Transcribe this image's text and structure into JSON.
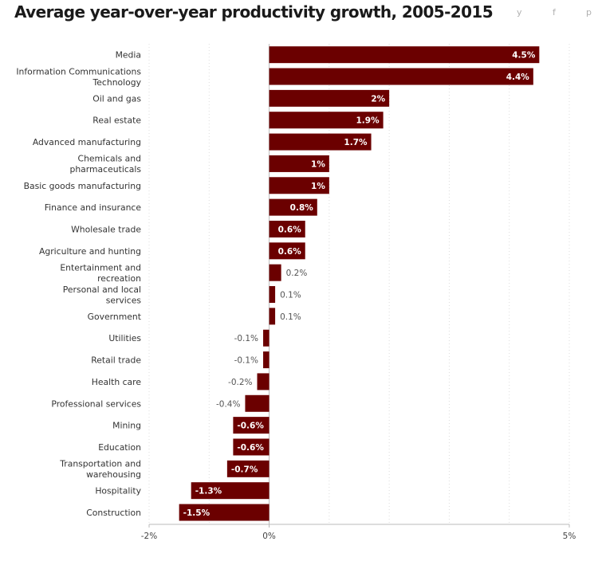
{
  "header": {
    "title": "Average year-over-year productivity growth, 2005-2015",
    "share": [
      {
        "icon": "twitter-icon",
        "glyph": "y"
      },
      {
        "icon": "facebook-icon",
        "glyph": "f"
      },
      {
        "icon": "pinterest-icon",
        "glyph": "p"
      }
    ]
  },
  "colors": {
    "bar": "#6b0000",
    "grid": "#dcdcdc",
    "axis": "#bbbbbb"
  },
  "chart_data": {
    "type": "bar",
    "orientation": "horizontal",
    "title": "Average year-over-year productivity growth, 2005-2015",
    "xlabel": "",
    "ylabel": "",
    "xlim": [
      -2,
      5
    ],
    "x_ticks": [
      -2,
      0,
      5
    ],
    "x_tick_labels": [
      "-2%",
      "0%",
      "5%"
    ],
    "grid": true,
    "categories": [
      [
        "Media"
      ],
      [
        "Information Communications",
        "Technology"
      ],
      [
        "Oil and gas"
      ],
      [
        "Real estate"
      ],
      [
        "Advanced manufacturing"
      ],
      [
        "Chemicals and",
        "pharmaceuticals"
      ],
      [
        "Basic goods manufacturing"
      ],
      [
        "Finance and insurance"
      ],
      [
        "Wholesale trade"
      ],
      [
        "Agriculture and hunting"
      ],
      [
        "Entertainment and",
        "recreation"
      ],
      [
        "Personal and local",
        "services"
      ],
      [
        "Government"
      ],
      [
        "Utilities"
      ],
      [
        "Retail trade"
      ],
      [
        "Health care"
      ],
      [
        "Professional services"
      ],
      [
        "Mining"
      ],
      [
        "Education"
      ],
      [
        "Transportation and",
        "warehousing"
      ],
      [
        "Hospitality"
      ],
      [
        "Construction"
      ]
    ],
    "values": [
      4.5,
      4.4,
      2,
      1.9,
      1.7,
      1,
      1,
      0.8,
      0.6,
      0.6,
      0.2,
      0.1,
      0.1,
      -0.1,
      -0.1,
      -0.2,
      -0.4,
      -0.6,
      -0.6,
      -0.7,
      -1.3,
      -1.5
    ],
    "value_labels": [
      "4.5%",
      "4.4%",
      "2%",
      "1.9%",
      "1.7%",
      "1%",
      "1%",
      "0.8%",
      "0.6%",
      "0.6%",
      "0.2%",
      "0.1%",
      "0.1%",
      "-0.1%",
      "-0.1%",
      "-0.2%",
      "-0.4%",
      "-0.6%",
      "-0.6%",
      "-0.7%",
      "-1.3%",
      "-1.5%"
    ]
  }
}
